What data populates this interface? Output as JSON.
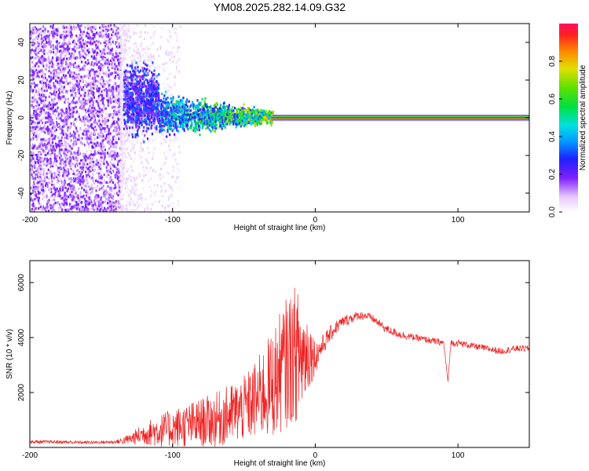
{
  "title": "YM08.2025.282.14.09.G32",
  "colors": {
    "snr_line": "#ee2222",
    "background": "#ffffff"
  },
  "chart_data": [
    {
      "type": "heatmap",
      "name": "spectrogram",
      "xlabel": "Height of straight line (km)",
      "ylabel": "Frequency (Hz)",
      "xlim": [
        -200,
        150
      ],
      "ylim": [
        -50,
        50
      ],
      "xticks": [
        -200,
        -100,
        0,
        100
      ],
      "yticks": [
        -40,
        -20,
        0,
        20,
        40
      ],
      "xticklabels": [
        "-200",
        "-100",
        "0",
        "100"
      ],
      "yticklabels": [
        "-40",
        "-20",
        "0",
        "20",
        "40"
      ],
      "colorbar": {
        "label": "Normalized spectral amplitude",
        "range": [
          0.0,
          1.0
        ],
        "ticks": [
          0.0,
          0.2,
          0.4,
          0.6,
          0.8
        ],
        "ticklabels": [
          "0.0",
          "0.2",
          "0.4",
          "0.6",
          "0.8"
        ]
      },
      "regions": [
        {
          "desc": "noise",
          "x": [
            -200,
            -137
          ],
          "freq": [
            -50,
            50
          ],
          "amplitude": 0.15
        },
        {
          "desc": "sparse noise",
          "x": [
            -137,
            -95
          ],
          "freq": [
            -50,
            50
          ],
          "amplitude": 0.05
        },
        {
          "desc": "signal onset",
          "x": [
            -135,
            -110
          ],
          "freq_center": 10,
          "freq_spread": 10,
          "amplitude": 0.2
        },
        {
          "desc": "signal converging",
          "x": [
            -110,
            -30
          ],
          "freq_center": 2,
          "freq_spread": 4,
          "amplitude": 0.35
        },
        {
          "desc": "carrier line",
          "x": [
            -30,
            150
          ],
          "freq_center": 0,
          "freq_spread": 1,
          "amplitude": 1.0
        }
      ]
    },
    {
      "type": "line",
      "name": "snr",
      "xlabel": "Height of straight line (km)",
      "ylabel": "SNR (10 * v/v)",
      "xlim": [
        -200,
        150
      ],
      "ylim": [
        0,
        6800
      ],
      "xticks": [
        -200,
        -100,
        0,
        100
      ],
      "yticks": [
        2000,
        4000,
        6000
      ],
      "xticklabels": [
        "-200",
        "-100",
        "0",
        "100"
      ],
      "yticklabels": [
        "2000",
        "4000",
        "6000"
      ],
      "series": [
        {
          "name": "SNR",
          "x": [
            -200,
            -180,
            -160,
            -140,
            -130,
            -120,
            -110,
            -100,
            -90,
            -80,
            -70,
            -60,
            -50,
            -40,
            -30,
            -25,
            -20,
            -15,
            -10,
            -5,
            0,
            5,
            10,
            15,
            20,
            25,
            30,
            35,
            40,
            45,
            50,
            60,
            70,
            80,
            90,
            93,
            95,
            100,
            110,
            120,
            130,
            140,
            150
          ],
          "y": [
            200,
            200,
            180,
            200,
            300,
            500,
            600,
            700,
            800,
            900,
            1000,
            1200,
            1400,
            1800,
            2300,
            2700,
            3100,
            3400,
            3300,
            3500,
            3300,
            3700,
            4100,
            4400,
            4600,
            4700,
            4800,
            4800,
            4700,
            4500,
            4300,
            4100,
            4000,
            3900,
            3800,
            2400,
            3800,
            3800,
            3700,
            3600,
            3500,
            3600,
            3600
          ],
          "noise_envelope": [
            60,
            60,
            60,
            60,
            200,
            400,
            600,
            700,
            800,
            900,
            1000,
            1100,
            1200,
            1500,
            2000,
            2200,
            2400,
            2500,
            2300,
            1500,
            600,
            400,
            300,
            250,
            200,
            200,
            150,
            150,
            150,
            150,
            150,
            150,
            120,
            120,
            120,
            0,
            120,
            120,
            120,
            120,
            120,
            120,
            120
          ]
        }
      ]
    }
  ]
}
